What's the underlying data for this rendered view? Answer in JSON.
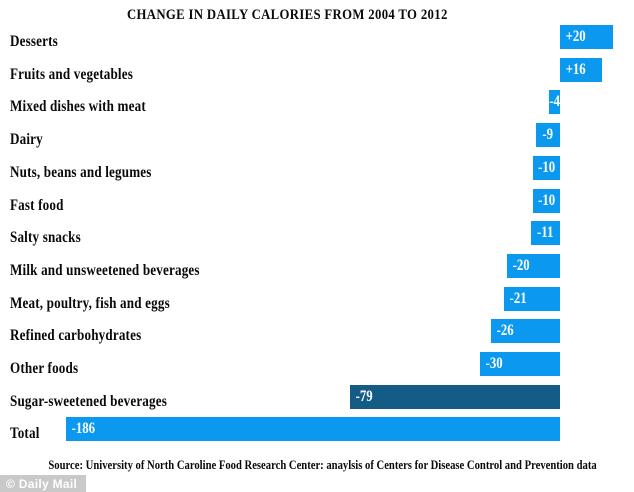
{
  "title": "CHANGE IN DAILY CALORIES FROM 2004 TO 2012",
  "chart_data": {
    "type": "bar",
    "orientation": "horizontal",
    "title": "CHANGE IN DAILY CALORIES FROM 2004 TO 2012",
    "categories": [
      "Desserts",
      "Fruits and vegetables",
      "Mixed dishes with meat",
      "Dairy",
      "Nuts, beans and legumes",
      "Fast food",
      "Salty snacks",
      "Milk and unsweetened beverages",
      "Meat, poultry, fish and eggs",
      "Refined carbohydrates",
      "Other foods",
      "Sugar-sweetened beverages",
      "Total"
    ],
    "values": [
      20,
      16,
      -4,
      -9,
      -10,
      -10,
      -11,
      -20,
      -21,
      -26,
      -30,
      -79,
      -186
    ],
    "value_labels": [
      "+20",
      "+16",
      "-4",
      "-9",
      "-10",
      "-10",
      "-11",
      "-20",
      "-21",
      "-26",
      "-30",
      "-79",
      "-186"
    ],
    "highlight_index": 11,
    "xlim": [
      -186,
      20
    ],
    "grid": false,
    "legend": null,
    "colors": {
      "bar": "#0b99f0",
      "highlight_bar": "#145c85",
      "value_text": "#ffffff",
      "label_text": "#0a0a0a"
    }
  },
  "source": "Source: University of North Caroline Food Research Center: anaylsis of Centers for Disease Control and Prevention data",
  "footer": {
    "credit": "© Daily Mail"
  }
}
